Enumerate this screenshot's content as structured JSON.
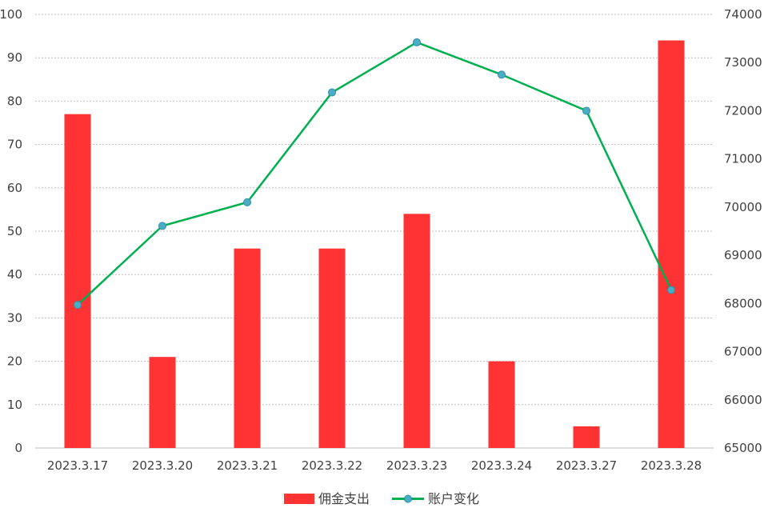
{
  "chart_data": {
    "type": "bar",
    "categories": [
      "2023.3.17",
      "2023.3.20",
      "2023.3.21",
      "2023.3.22",
      "2023.3.23",
      "2023.3.24",
      "2023.3.27",
      "2023.3.28"
    ],
    "series": [
      {
        "name": "佣金支出",
        "type": "bar",
        "axis": "left",
        "color": "#ff3333",
        "values": [
          77,
          21,
          46,
          46,
          54,
          20,
          5,
          94
        ]
      },
      {
        "name": "账户变化",
        "type": "line",
        "axis": "right",
        "color": "#00b050",
        "marker_color": "#4bacc6",
        "values": [
          67970,
          69610,
          70100,
          72380,
          73420,
          72750,
          72000,
          68280
        ]
      }
    ],
    "y_left": {
      "min": 0,
      "max": 100,
      "step": 10,
      "ticks": [
        "0",
        "10",
        "20",
        "30",
        "40",
        "50",
        "60",
        "70",
        "80",
        "90",
        "100"
      ]
    },
    "y_right": {
      "min": 65000,
      "max": 74000,
      "step": 1000,
      "ticks": [
        "65000",
        "66000",
        "67000",
        "68000",
        "69000",
        "70000",
        "71000",
        "72000",
        "73000",
        "74000"
      ]
    },
    "grid": true,
    "legend_position": "bottom-center"
  }
}
